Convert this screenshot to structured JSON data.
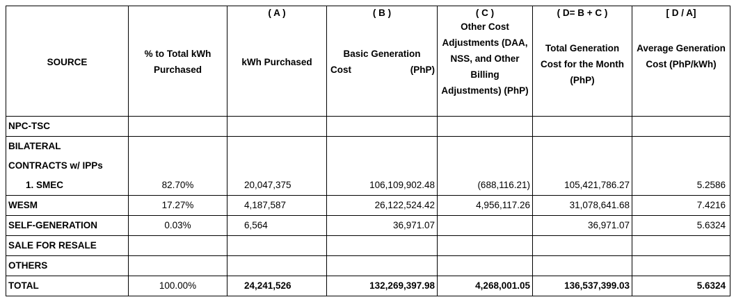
{
  "header": {
    "source": "SOURCE",
    "pct": "% to Total kWh Purchased",
    "a_code": "( A )",
    "a_label": "kWh Purchased",
    "b_code": "( B )",
    "b_label_line1": "Basic Generation",
    "b_label_cost": "Cost",
    "b_label_unit": "(PhP)",
    "c_code": "( C )",
    "c_label": "Other Cost Adjustments (DAA, NSS, and Other Billing Adjustments) (PhP)",
    "d_code": "( D= B + C )",
    "d_label": "Total Generation Cost for the Month (PhP)",
    "e_code": "[ D / A]",
    "e_label": "Average Generation Cost (PhP/kWh)"
  },
  "rows": {
    "npc": {
      "label": "NPC-TSC"
    },
    "bilateral": {
      "label_line1": "BILATERAL",
      "label_line2": "CONTRACTS w/ IPPs"
    },
    "smec": {
      "label": "1.  SMEC",
      "pct": "82.70%",
      "kwh": "20,047,375",
      "basic": "106,109,902.48",
      "other": "(688,116.21)",
      "total": "105,421,786.27",
      "avg": "5.2586"
    },
    "wesm": {
      "label": "WESM",
      "pct": "17.27%",
      "kwh": "4,187,587",
      "basic": "26,122,524.42",
      "other": "4,956,117.26",
      "total": "31,078,641.68",
      "avg": "7.4216"
    },
    "selfgen": {
      "label": "SELF-GENERATION",
      "pct": "0.03%",
      "kwh": "6,564",
      "basic": "36,971.07",
      "other": "",
      "total": "36,971.07",
      "avg": "5.6324"
    },
    "resale": {
      "label": "SALE FOR RESALE"
    },
    "others": {
      "label": "OTHERS"
    },
    "total": {
      "label": "TOTAL",
      "pct": "100.00%",
      "kwh": "24,241,526",
      "basic": "132,269,397.98",
      "other": "4,268,001.05",
      "total": "136,537,399.03",
      "avg": "5.6324"
    }
  }
}
